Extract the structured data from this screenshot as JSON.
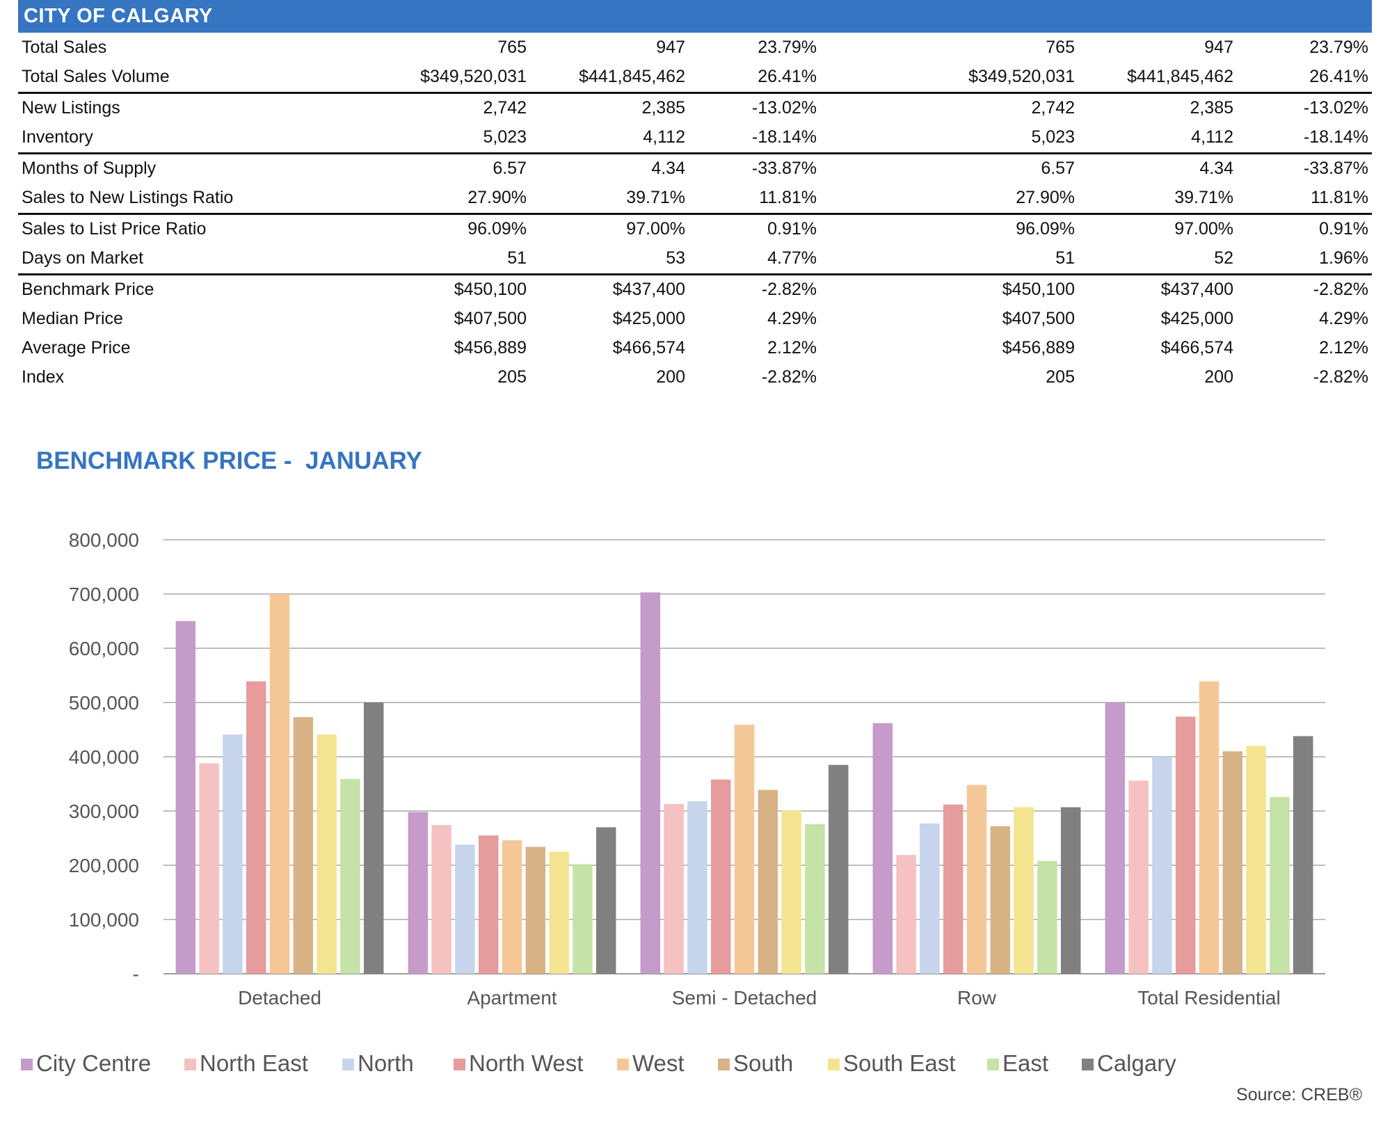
{
  "header": {
    "title": "CITY OF CALGARY"
  },
  "table": {
    "rows": [
      {
        "label": "Total Sales",
        "cells": [
          "765",
          "947",
          "23.79%",
          "765",
          "947",
          "23.79%"
        ]
      },
      {
        "label": "Total Sales Volume",
        "cells": [
          "$349,520,031",
          "$441,845,462",
          "26.41%",
          "$349,520,031",
          "$441,845,462",
          "26.41%"
        ]
      },
      {
        "label": "New Listings",
        "cells": [
          "2,742",
          "2,385",
          "-13.02%",
          "2,742",
          "2,385",
          "-13.02%"
        ]
      },
      {
        "label": "Inventory",
        "cells": [
          "5,023",
          "4,112",
          "-18.14%",
          "5,023",
          "4,112",
          "-18.14%"
        ]
      },
      {
        "label": "Months of Supply",
        "cells": [
          "6.57",
          "4.34",
          "-33.87%",
          "6.57",
          "4.34",
          "-33.87%"
        ]
      },
      {
        "label": "Sales to New Listings Ratio",
        "cells": [
          "27.90%",
          "39.71%",
          "11.81%",
          "27.90%",
          "39.71%",
          "11.81%"
        ]
      },
      {
        "label": "Sales to List Price Ratio",
        "cells": [
          "96.09%",
          "97.00%",
          "0.91%",
          "96.09%",
          "97.00%",
          "0.91%"
        ]
      },
      {
        "label": "Days on Market",
        "cells": [
          "51",
          "53",
          "4.77%",
          "51",
          "52",
          "1.96%"
        ]
      },
      {
        "label": "Benchmark Price",
        "cells": [
          "$450,100",
          "$437,400",
          "-2.82%",
          "$450,100",
          "$437,400",
          "-2.82%"
        ]
      },
      {
        "label": "Median Price",
        "cells": [
          "$407,500",
          "$425,000",
          "4.29%",
          "$407,500",
          "$425,000",
          "4.29%"
        ]
      },
      {
        "label": "Average Price",
        "cells": [
          "$456,889",
          "$466,574",
          "2.12%",
          "$456,889",
          "$466,574",
          "2.12%"
        ]
      },
      {
        "label": "Index",
        "cells": [
          "205",
          "200",
          "-2.82%",
          "205",
          "200",
          "-2.82%"
        ]
      }
    ]
  },
  "chart_data": {
    "type": "bar",
    "title": "BENCHMARK PRICE -  JANUARY",
    "xlabel": "",
    "ylabel": "",
    "ylim": [
      0,
      800000
    ],
    "yticks": [
      {
        "value": 0,
        "label": "-"
      },
      {
        "value": 100000,
        "label": "100,000"
      },
      {
        "value": 200000,
        "label": "200,000"
      },
      {
        "value": 300000,
        "label": "300,000"
      },
      {
        "value": 400000,
        "label": "400,000"
      },
      {
        "value": 500000,
        "label": "500,000"
      },
      {
        "value": 600000,
        "label": "600,000"
      },
      {
        "value": 700000,
        "label": "700,000"
      },
      {
        "value": 800000,
        "label": "800,000"
      }
    ],
    "grid": true,
    "legend": "bottom",
    "categories": [
      "Detached",
      "Apartment",
      "Semi - Detached",
      "Row",
      "Total Residential"
    ],
    "series": [
      {
        "name": "City Centre",
        "color": "#c59bc9",
        "values": [
          650000,
          298000,
          703000,
          462000,
          500000
        ]
      },
      {
        "name": "North East",
        "color": "#f5c1c1",
        "values": [
          388000,
          274000,
          313000,
          219000,
          356000
        ]
      },
      {
        "name": "North",
        "color": "#c6d5ec",
        "values": [
          441000,
          238000,
          318000,
          277000,
          400000
        ]
      },
      {
        "name": "North West",
        "color": "#e69c9c",
        "values": [
          539000,
          255000,
          358000,
          312000,
          474000
        ]
      },
      {
        "name": "West",
        "color": "#f6c796",
        "values": [
          700000,
          246000,
          459000,
          348000,
          539000
        ]
      },
      {
        "name": "South",
        "color": "#d8b386",
        "values": [
          473000,
          234000,
          339000,
          272000,
          410000
        ]
      },
      {
        "name": "South East",
        "color": "#f4e48f",
        "values": [
          441000,
          225000,
          301000,
          307000,
          420000
        ]
      },
      {
        "name": "East",
        "color": "#c5e2a7",
        "values": [
          359000,
          202000,
          276000,
          208000,
          326000
        ]
      },
      {
        "name": "Calgary",
        "color": "#808080",
        "values": [
          500000,
          270000,
          385000,
          307000,
          438000
        ]
      }
    ]
  },
  "footer": {
    "source": "Source: CREB®"
  }
}
